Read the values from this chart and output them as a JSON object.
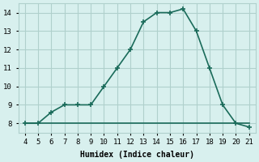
{
  "x": [
    4,
    5,
    6,
    7,
    8,
    9,
    10,
    11,
    12,
    13,
    14,
    15,
    16,
    17,
    18,
    19,
    20,
    21
  ],
  "y_main": [
    8,
    8,
    8.6,
    9,
    9,
    9,
    10,
    11,
    12,
    13.5,
    14,
    14,
    14.2,
    13,
    11,
    9,
    8,
    7.8
  ],
  "y_flat": [
    8,
    8,
    8,
    8,
    8,
    8,
    8,
    8,
    8,
    8,
    8,
    8,
    8,
    8,
    8,
    8,
    8,
    8
  ],
  "line_color": "#1a6b5a",
  "bg_color": "#d8f0ee",
  "grid_color": "#b0d0cc",
  "xlabel": "Humidex (Indice chaleur)",
  "xlim": [
    3.5,
    21.5
  ],
  "ylim": [
    7.5,
    14.5
  ],
  "xticks": [
    4,
    5,
    6,
    7,
    8,
    9,
    10,
    11,
    12,
    13,
    14,
    15,
    16,
    17,
    18,
    19,
    20,
    21
  ],
  "yticks": [
    8,
    9,
    10,
    11,
    12,
    13,
    14
  ],
  "marker": "+",
  "markersize": 5,
  "linewidth": 1.2
}
